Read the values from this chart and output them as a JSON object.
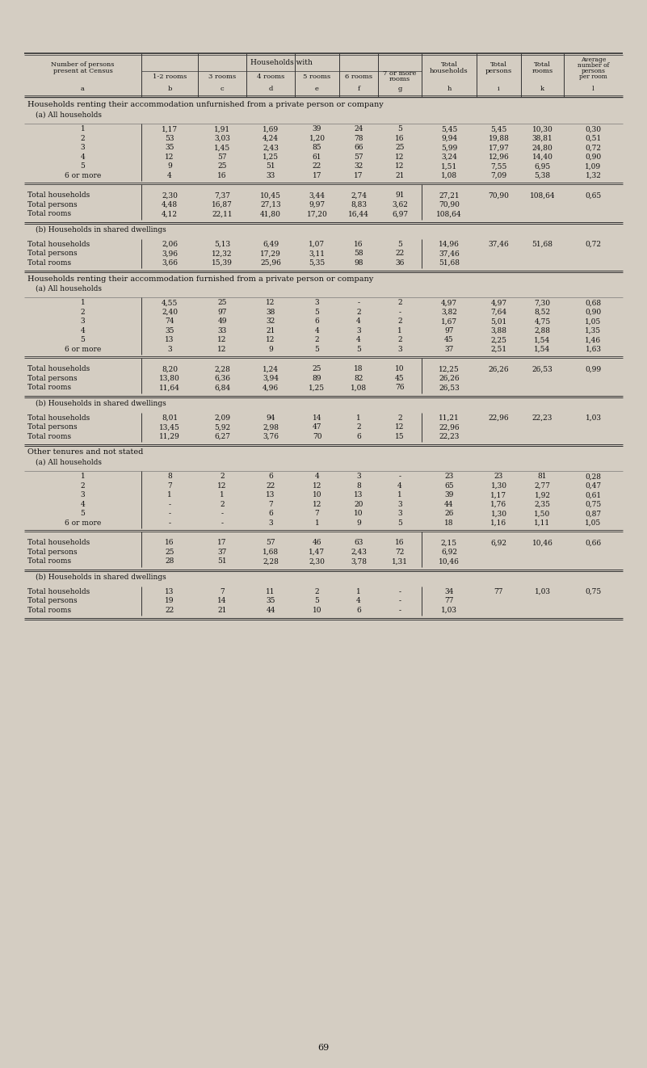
{
  "bg_color": "#d4cdc2",
  "page_marker": "p",
  "col_letters": [
    "a",
    "b",
    "c",
    "d",
    "e",
    "f",
    "g",
    "h",
    "i",
    "k",
    "l"
  ],
  "section1_title": "Households renting their accommodation unfurnished from a private person or company",
  "section1a_title": "(a) All households",
  "section1a_rows": [
    [
      "1",
      "1,17",
      "1,91",
      "1,69",
      "39",
      "24",
      "5",
      "5,45",
      "5,45",
      "10,30",
      "0,30"
    ],
    [
      "2",
      "53",
      "3,03",
      "4,24",
      "1,20",
      "78",
      "16",
      "9,94",
      "19,88",
      "38,81",
      "0,51"
    ],
    [
      "3",
      "35",
      "1,45",
      "2,43",
      "85",
      "66",
      "25",
      "5,99",
      "17,97",
      "24,80",
      "0,72"
    ],
    [
      "4",
      "12",
      "57",
      "1,25",
      "61",
      "57",
      "12",
      "3,24",
      "12,96",
      "14,40",
      "0,90"
    ],
    [
      "5",
      "9",
      "25",
      "51",
      "22",
      "32",
      "12",
      "1,51",
      "7,55",
      "6,95",
      "1,09"
    ],
    [
      "6 or more",
      "4",
      "16",
      "33",
      "17",
      "17",
      "21",
      "1,08",
      "7,09",
      "5,38",
      "1,32"
    ]
  ],
  "section1a_totals": [
    [
      "Total households",
      "2,30",
      "7,37",
      "10,45",
      "3,44",
      "2,74",
      "91",
      "27,21",
      "70,90",
      "108,64",
      "0,65"
    ],
    [
      "Total persons",
      "4,48",
      "16,87",
      "27,13",
      "9,97",
      "8,83",
      "3,62",
      "70,90",
      "",
      "",
      ""
    ],
    [
      "Total rooms",
      "4,12",
      "22,11",
      "41,80",
      "17,20",
      "16,44",
      "6,97",
      "108,64",
      "",
      "",
      ""
    ]
  ],
  "section1b_title": "(b) Households in shared dwellings",
  "section1b_totals": [
    [
      "Total households",
      "2,06",
      "5,13",
      "6,49",
      "1,07",
      "16",
      "5",
      "14,96",
      "37,46",
      "51,68",
      "0,72"
    ],
    [
      "Total persons",
      "3,96",
      "12,32",
      "17,29",
      "3,11",
      "58",
      "22",
      "37,46",
      "",
      "",
      ""
    ],
    [
      "Total rooms",
      "3,66",
      "15,39",
      "25,96",
      "5,35",
      "98",
      "36",
      "51,68",
      "",
      "",
      ""
    ]
  ],
  "section2_title": "Households renting their accommodation furnished from a private person or company",
  "section2a_title": "(a) All households",
  "section2a_rows": [
    [
      "1",
      "4,55",
      "25",
      "12",
      "3",
      "-",
      "2",
      "4,97",
      "4,97",
      "7,30",
      "0,68"
    ],
    [
      "2",
      "2,40",
      "97",
      "38",
      "5",
      "2",
      "-",
      "3,82",
      "7,64",
      "8,52",
      "0,90"
    ],
    [
      "3",
      "74",
      "49",
      "32",
      "6",
      "4",
      "2",
      "1,67",
      "5,01",
      "4,75",
      "1,05"
    ],
    [
      "4",
      "35",
      "33",
      "21",
      "4",
      "3",
      "1",
      "97",
      "3,88",
      "2,88",
      "1,35"
    ],
    [
      "5",
      "13",
      "12",
      "12",
      "2",
      "4",
      "2",
      "45",
      "2,25",
      "1,54",
      "1,46"
    ],
    [
      "6 or more",
      "3",
      "12",
      "9",
      "5",
      "5",
      "3",
      "37",
      "2,51",
      "1,54",
      "1,63"
    ]
  ],
  "section2a_totals": [
    [
      "Total households",
      "8,20",
      "2,28",
      "1,24",
      "25",
      "18",
      "10",
      "12,25",
      "26,26",
      "26,53",
      "0,99"
    ],
    [
      "Total persons",
      "13,80",
      "6,36",
      "3,94",
      "89",
      "82",
      "45",
      "26,26",
      "",
      "",
      ""
    ],
    [
      "Total rooms",
      "11,64",
      "6,84",
      "4,96",
      "1,25",
      "1,08",
      "76",
      "26,53",
      "",
      "",
      ""
    ]
  ],
  "section2b_title": "(b) Households in shared dwellings",
  "section2b_totals": [
    [
      "Total households",
      "8,01",
      "2,09",
      "94",
      "14",
      "1",
      "2",
      "11,21",
      "22,96",
      "22,23",
      "1,03"
    ],
    [
      "Total persons",
      "13,45",
      "5,92",
      "2,98",
      "47",
      "2",
      "12",
      "22,96",
      "",
      "",
      ""
    ],
    [
      "Total rooms",
      "11,29",
      "6,27",
      "3,76",
      "70",
      "6",
      "15",
      "22,23",
      "",
      "",
      ""
    ]
  ],
  "section3_title": "Other tenures and not stated",
  "section3a_title": "(a) All households",
  "section3a_rows": [
    [
      "1",
      "8",
      "2",
      "6",
      "4",
      "3",
      "-",
      "23",
      "23",
      "81",
      "0,28"
    ],
    [
      "2",
      "7",
      "12",
      "22",
      "12",
      "8",
      "4",
      "65",
      "1,30",
      "2,77",
      "0,47"
    ],
    [
      "3",
      "1",
      "1",
      "13",
      "10",
      "13",
      "1",
      "39",
      "1,17",
      "1,92",
      "0,61"
    ],
    [
      "4",
      "-",
      "2",
      "7",
      "12",
      "20",
      "3",
      "44",
      "1,76",
      "2,35",
      "0,75"
    ],
    [
      "5",
      "-",
      "-",
      "6",
      "7",
      "10",
      "3",
      "26",
      "1,30",
      "1,50",
      "0,87"
    ],
    [
      "6 or more",
      "-",
      "-",
      "3",
      "1",
      "9",
      "5",
      "18",
      "1,16",
      "1,11",
      "1,05"
    ]
  ],
  "section3a_totals": [
    [
      "Total households",
      "16",
      "17",
      "57",
      "46",
      "63",
      "16",
      "2,15",
      "6,92",
      "10,46",
      "0,66"
    ],
    [
      "Total persons",
      "25",
      "37",
      "1,68",
      "1,47",
      "2,43",
      "72",
      "6,92",
      "",
      "",
      ""
    ],
    [
      "Total rooms",
      "28",
      "51",
      "2,28",
      "2,30",
      "3,78",
      "1,31",
      "10,46",
      "",
      "",
      ""
    ]
  ],
  "section3b_title": "(b) Households in shared dwellings",
  "section3b_totals": [
    [
      "Total households",
      "13",
      "7",
      "11",
      "2",
      "1",
      "-",
      "34",
      "77",
      "1,03",
      "0,75"
    ],
    [
      "Total persons",
      "19",
      "14",
      "35",
      "5",
      "4",
      "-",
      "77",
      "",
      "",
      ""
    ],
    [
      "Total rooms",
      "22",
      "21",
      "44",
      "10",
      "6",
      "-",
      "1,03",
      "",
      "",
      ""
    ]
  ],
  "page_number": "69"
}
